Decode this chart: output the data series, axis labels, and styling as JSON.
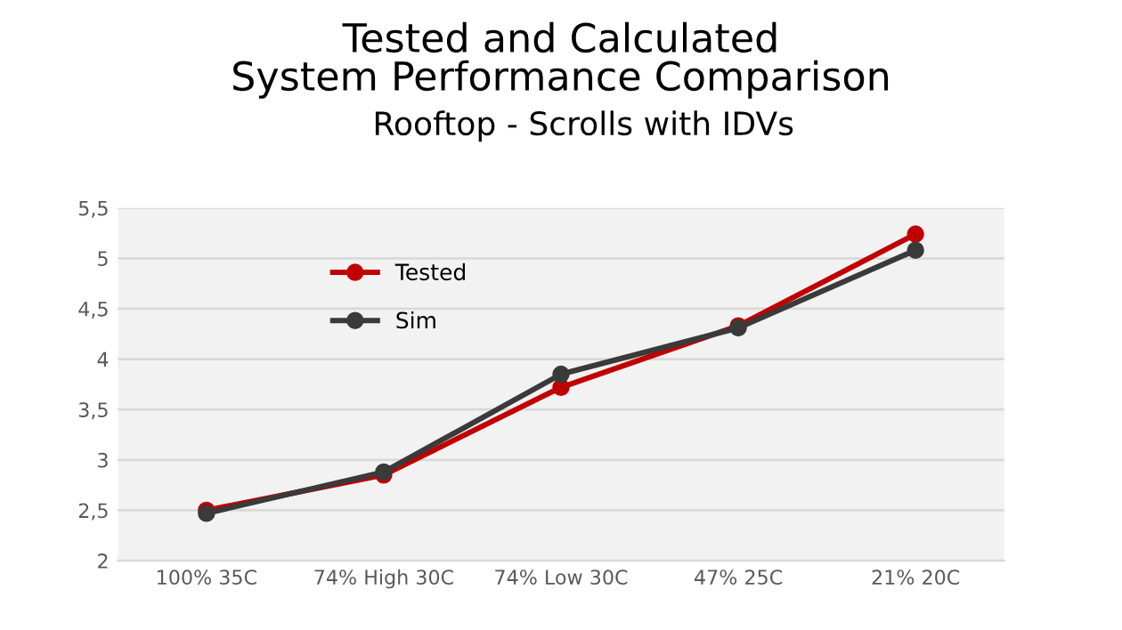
{
  "chart_data": {
    "type": "line",
    "title": "Tested and Calculated\nSystem Performance Comparison",
    "subtitle": "Rooftop - Scrolls with IDVs",
    "categories": [
      "100% 35C",
      "74% High 30C",
      "74% Low 30C",
      "47% 25C",
      "21% 20C"
    ],
    "series": [
      {
        "name": "Tested",
        "color": "#c00000",
        "values": [
          2.5,
          2.85,
          3.72,
          4.33,
          5.24
        ]
      },
      {
        "name": "Sim",
        "color": "#3a3a3a",
        "values": [
          2.47,
          2.88,
          3.85,
          4.31,
          5.08
        ]
      }
    ],
    "ylim": [
      2,
      5.5
    ],
    "yticks": [
      2,
      {
        "value": 2.5,
        "label": "2,5"
      },
      3,
      {
        "value": 3.5,
        "label": "3,5"
      },
      4,
      {
        "value": 4.5,
        "label": "4,5"
      },
      5,
      {
        "value": 5.5,
        "label": "5,5"
      }
    ],
    "grid": "y",
    "legend": "top left",
    "marker": "circle",
    "line_style": "solid"
  }
}
